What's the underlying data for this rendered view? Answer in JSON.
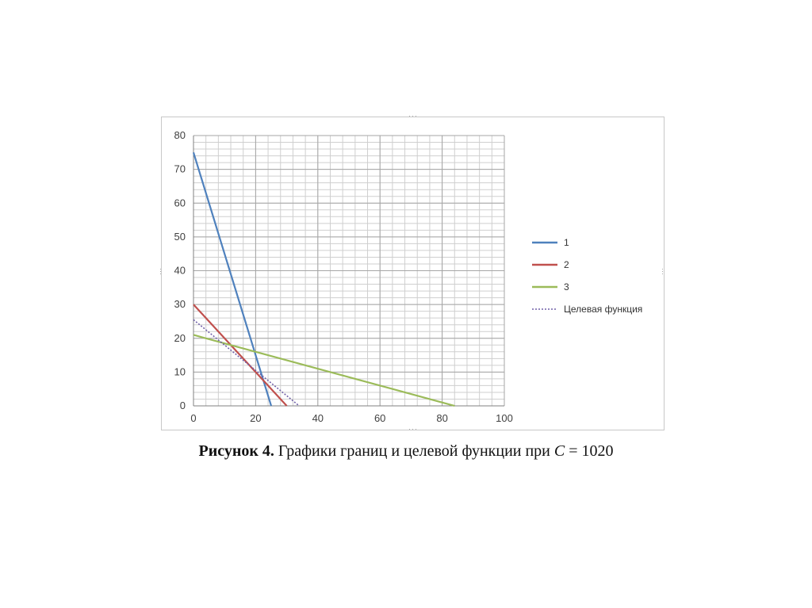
{
  "chart_data": {
    "type": "line",
    "title": "",
    "xlabel": "",
    "ylabel": "",
    "xlim": [
      0,
      100
    ],
    "ylim": [
      0,
      80
    ],
    "x_ticks": [
      0,
      20,
      40,
      60,
      80,
      100
    ],
    "y_ticks": [
      0,
      10,
      20,
      30,
      40,
      50,
      60,
      70,
      80
    ],
    "grid": true,
    "legend_position": "right",
    "series": [
      {
        "name": "1",
        "color": "#4f81bd",
        "style": "solid",
        "points": [
          [
            0,
            75
          ],
          [
            25,
            0
          ]
        ]
      },
      {
        "name": "2",
        "color": "#c0504d",
        "style": "solid",
        "points": [
          [
            0,
            30
          ],
          [
            30,
            0
          ]
        ]
      },
      {
        "name": "3",
        "color": "#9bbb59",
        "style": "solid",
        "points": [
          [
            0,
            21
          ],
          [
            84,
            0
          ]
        ]
      },
      {
        "name": "Целевая функция",
        "color": "#7060a8",
        "style": "dotted",
        "points": [
          [
            0,
            25.5
          ],
          [
            34,
            0
          ]
        ]
      }
    ]
  },
  "caption": {
    "label": "Рисунок 4.",
    "text_before": " Графики границ и целевой функции при ",
    "variable": "C",
    "text_after": " = 1020"
  }
}
